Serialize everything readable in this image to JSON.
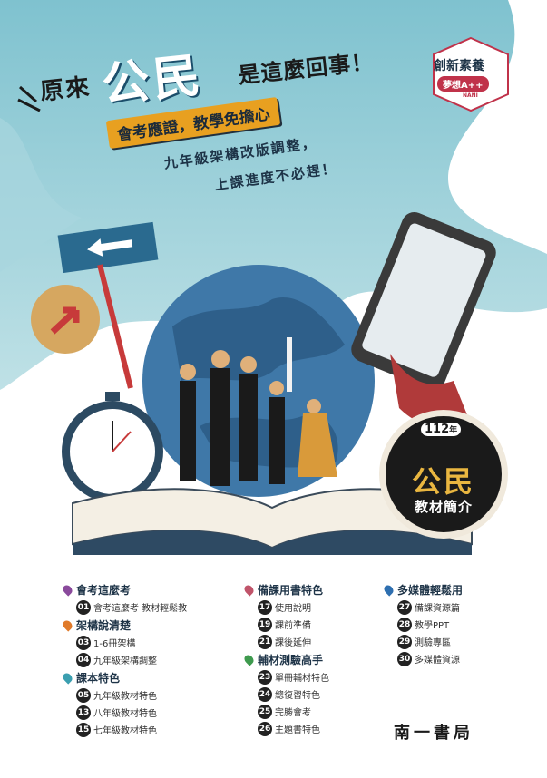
{
  "headline": {
    "part1": "原來",
    "part2": "公民",
    "part3": "是這麼回事！",
    "tagline": "會考應證，教學免擔心",
    "line2": "九年級架構改版調整，",
    "line3": "上課進度不必趕！"
  },
  "badge": {
    "top": "創新素養",
    "pill": "夢想A++",
    "small": "NANI"
  },
  "seal": {
    "year": "112",
    "year_unit": "年",
    "subject": "公民",
    "caption": "教材簡介"
  },
  "colors": {
    "sky": "#8cc9d4",
    "accent_orange": "#e8a020",
    "accent_red": "#c0324a",
    "navy": "#1d3347",
    "pin_purple": "#8a4a9c",
    "pin_orange": "#e07a2a",
    "pin_teal": "#3b9fb0",
    "pin_pink": "#c0546a",
    "pin_green": "#3e9a4e",
    "pin_blue": "#2e6fb0"
  },
  "toc": {
    "col1": [
      {
        "section": "會考這麼考",
        "pin": "pin-purple",
        "items": [
          {
            "num": "01",
            "text": "會考這麼考 教材輕鬆教"
          }
        ]
      },
      {
        "section": "架構說清楚",
        "pin": "pin-orange",
        "items": [
          {
            "num": "03",
            "text": "1-6冊架構"
          },
          {
            "num": "04",
            "text": "九年級架構調整"
          }
        ]
      },
      {
        "section": "課本特色",
        "pin": "pin-teal",
        "items": [
          {
            "num": "05",
            "text": "九年級教材特色"
          },
          {
            "num": "13",
            "text": "八年級教材特色"
          },
          {
            "num": "15",
            "text": "七年級教材特色"
          }
        ]
      }
    ],
    "col2": [
      {
        "section": "備課用書特色",
        "pin": "pin-pink",
        "items": [
          {
            "num": "17",
            "text": "使用說明"
          },
          {
            "num": "19",
            "text": "課前準備"
          },
          {
            "num": "21",
            "text": "課後延伸"
          }
        ]
      },
      {
        "section": "輔材測驗高手",
        "pin": "pin-green",
        "items": [
          {
            "num": "23",
            "text": "單冊輔材特色"
          },
          {
            "num": "24",
            "text": "總復習特色"
          },
          {
            "num": "25",
            "text": "完勝會考"
          },
          {
            "num": "26",
            "text": "主題書特色"
          }
        ]
      }
    ],
    "col3": [
      {
        "section": "多媒體輕鬆用",
        "pin": "pin-blue",
        "items": [
          {
            "num": "27",
            "text": "備課資源篇"
          },
          {
            "num": "28",
            "text": "教學PPT"
          },
          {
            "num": "29",
            "text": "測驗專區"
          },
          {
            "num": "30",
            "text": "多媒體資源"
          }
        ]
      }
    ]
  },
  "publisher": "南一書局"
}
